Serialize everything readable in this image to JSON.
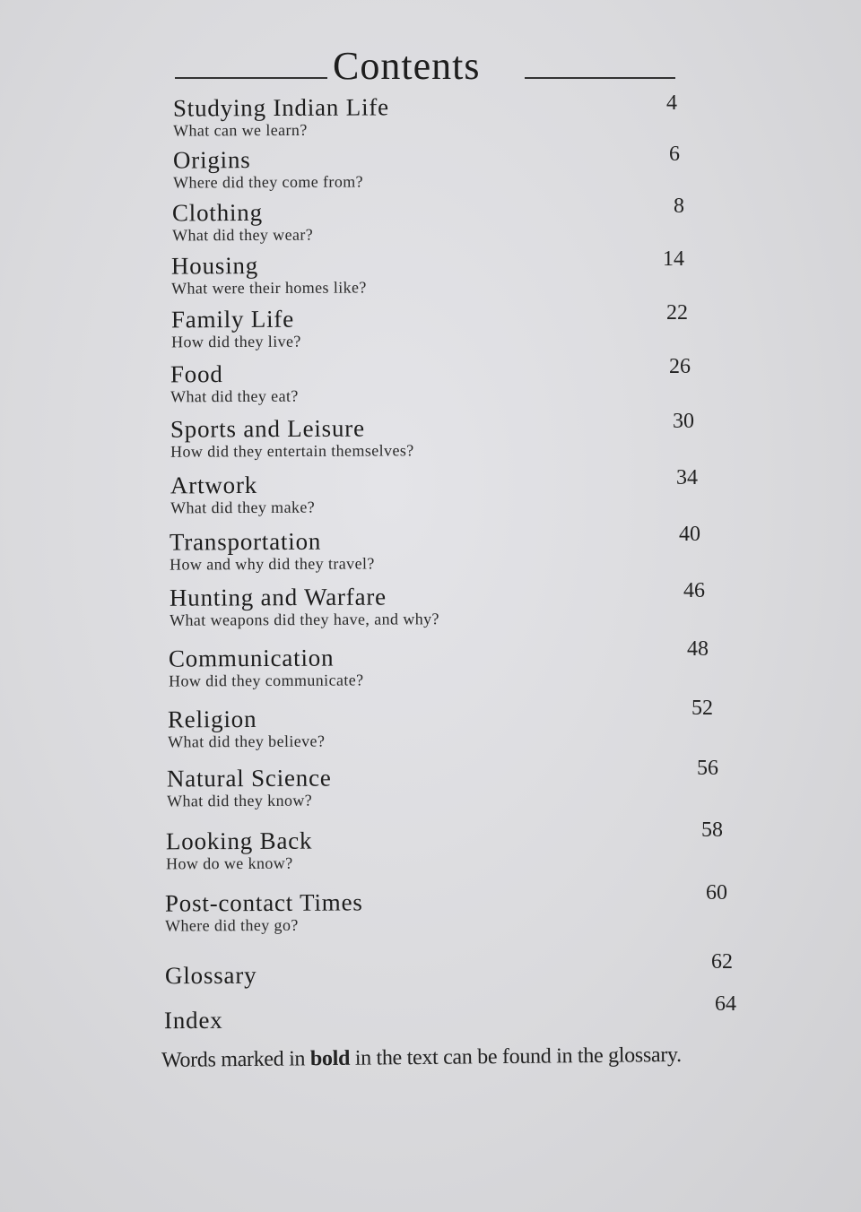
{
  "title": "Contents",
  "entries": [
    {
      "heading": "Studying Indian Life",
      "subtitle": "What can we learn?",
      "page": "4"
    },
    {
      "heading": "Origins",
      "subtitle": "Where did they come from?",
      "page": "6"
    },
    {
      "heading": "Clothing",
      "subtitle": "What did they wear?",
      "page": "8"
    },
    {
      "heading": "Housing",
      "subtitle": "What were their homes like?",
      "page": "14"
    },
    {
      "heading": "Family Life",
      "subtitle": "How did they live?",
      "page": "22"
    },
    {
      "heading": "Food",
      "subtitle": "What did they eat?",
      "page": "26"
    },
    {
      "heading": "Sports and Leisure",
      "subtitle": "How did they entertain themselves?",
      "page": "30"
    },
    {
      "heading": "Artwork",
      "subtitle": "What did they make?",
      "page": "34"
    },
    {
      "heading": "Transportation",
      "subtitle": "How and why did they travel?",
      "page": "40"
    },
    {
      "heading": "Hunting and Warfare",
      "subtitle": "What weapons did they have, and why?",
      "page": "46"
    },
    {
      "heading": "Communication",
      "subtitle": "How did they communicate?",
      "page": "48"
    },
    {
      "heading": "Religion",
      "subtitle": "What did they believe?",
      "page": "52"
    },
    {
      "heading": "Natural Science",
      "subtitle": "What did they know?",
      "page": "56"
    },
    {
      "heading": "Looking Back",
      "subtitle": "How do we know?",
      "page": "58"
    },
    {
      "heading": "Post-contact Times",
      "subtitle": "Where did they go?",
      "page": "60"
    },
    {
      "heading": "Glossary",
      "subtitle": "",
      "page": "62"
    },
    {
      "heading": "Index",
      "subtitle": "",
      "page": "64"
    }
  ],
  "footer": {
    "before": "Words marked in ",
    "bold": "bold",
    "after": " in the text can be found in the glossary."
  }
}
